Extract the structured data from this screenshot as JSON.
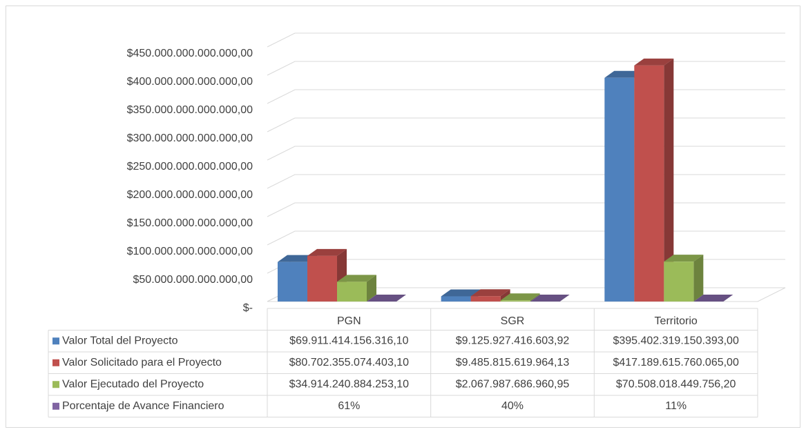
{
  "chart_data": {
    "type": "bar3d",
    "categories": [
      "PGN",
      "SGR",
      "Territorio"
    ],
    "series": [
      {
        "name": "Valor Total del Proyecto",
        "color": "#4f81bd",
        "values": [
          69911414156316.1,
          9125927416603.92,
          395402319150393.0
        ],
        "value_labels": [
          "$69.911.414.156.316,10",
          "$9.125.927.416.603,92",
          "$395.402.319.150.393,00"
        ]
      },
      {
        "name": "Valor Solicitado para el Proyecto",
        "color": "#c0504d",
        "values": [
          80702355074403.1,
          9485815619964.13,
          417189615760065.0
        ],
        "value_labels": [
          "$80.702.355.074.403,10",
          "$9.485.815.619.964,13",
          "$417.189.615.760.065,00"
        ]
      },
      {
        "name": "Valor Ejecutado del Proyecto",
        "color": "#9bbb59",
        "values": [
          34914240884253.1,
          2067987686960.95,
          70508018449756.2
        ],
        "value_labels": [
          "$34.914.240.884.253,10",
          "$2.067.987.686.960,95",
          "$70.508.018.449.756,20"
        ]
      },
      {
        "name": "Porcentaje de Avance Financiero",
        "color": "#8064a2",
        "values": [
          61,
          40,
          11
        ],
        "value_labels": [
          "61%",
          "40%",
          "11%"
        ]
      }
    ],
    "ylim": [
      0,
      450000000000000
    ],
    "yticks": [
      {
        "value": 0,
        "label": "$-"
      },
      {
        "value": 50000000000000,
        "label": "$50.000.000.000.000,00"
      },
      {
        "value": 100000000000000,
        "label": "$100.000.000.000.000,00"
      },
      {
        "value": 150000000000000,
        "label": "$150.000.000.000.000,00"
      },
      {
        "value": 200000000000000,
        "label": "$200.000.000.000.000,00"
      },
      {
        "value": 250000000000000,
        "label": "$250.000.000.000.000,00"
      },
      {
        "value": 300000000000000,
        "label": "$300.000.000.000.000,00"
      },
      {
        "value": 350000000000000,
        "label": "$350.000.000.000.000,00"
      },
      {
        "value": 400000000000000,
        "label": "$400.000.000.000.000,00"
      },
      {
        "value": 450000000000000,
        "label": "$450.000.000.000.000,00"
      }
    ],
    "grid": true
  }
}
